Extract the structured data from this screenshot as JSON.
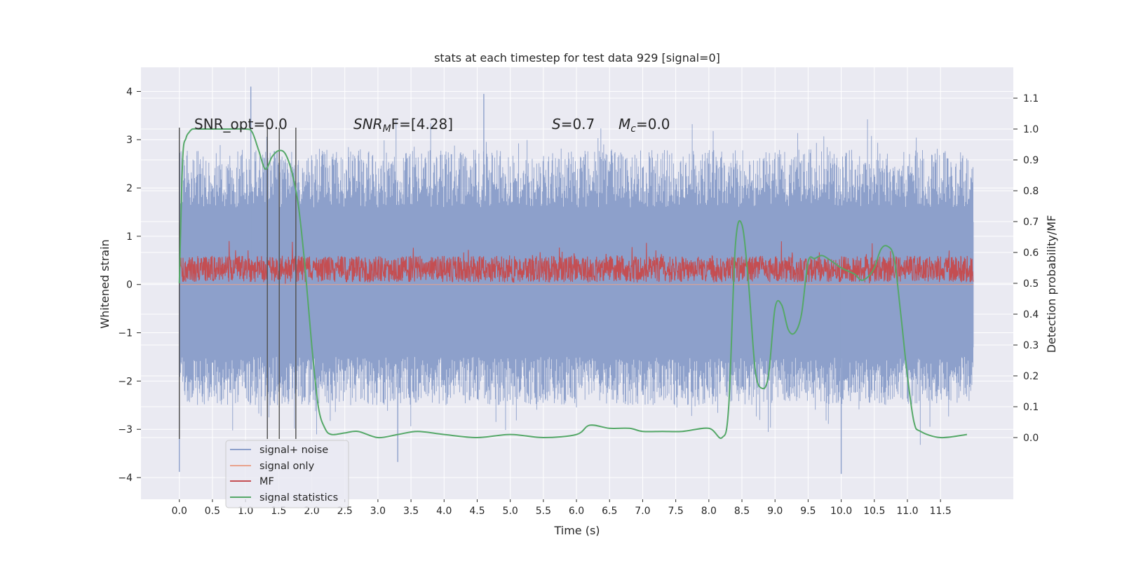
{
  "chart_data": {
    "type": "line",
    "title": "stats at each timestep for test data 929 [signal=0]",
    "xlabel": "Time (s)",
    "ylabel": "Whitened strain",
    "y2label": "Detection probability/MF",
    "xlim": [
      -0.58,
      12.6
    ],
    "ylim": [
      -4.45,
      4.5
    ],
    "y2lim": [
      -0.2,
      1.2
    ],
    "xticks": [
      "0.0",
      "0.5",
      "1.0",
      "1.5",
      "2.0",
      "2.5",
      "3.0",
      "3.5",
      "4.0",
      "4.5",
      "5.0",
      "5.5",
      "6.0",
      "6.5",
      "7.0",
      "7.5",
      "8.0",
      "8.5",
      "9.0",
      "9.5",
      "10.0",
      "10.5",
      "11.0",
      "11.5"
    ],
    "yticks": [
      "4",
      "3",
      "2",
      "1",
      "0",
      "−1",
      "−2",
      "−3",
      "−4"
    ],
    "y2ticks": [
      "1.1",
      "1.0",
      "0.9",
      "0.8",
      "0.7",
      "0.6",
      "0.5",
      "0.4",
      "0.3",
      "0.2",
      "0.1",
      "0.0"
    ],
    "grid": true,
    "legend_location": "lower-left",
    "annotations": {
      "snr_opt": "SNR_opt=0.0",
      "snr_mf_sym": "SNR",
      "snr_mf_sub": "M",
      "snr_mf_rest": "F=[4.28]",
      "s_sym": "S",
      "s_rest": "=0.7",
      "mc_sym": "M",
      "mc_sub": "c",
      "mc_rest": "=0.0"
    },
    "vertical_markers_x": [
      0.0,
      1.33,
      1.51,
      1.76
    ],
    "series": [
      {
        "name": "signal+ noise",
        "color": "#8da0cb",
        "kind": "noise",
        "band_inner": [
          -1.3,
          1.3
        ],
        "typical_envelope": [
          -2.6,
          3.0
        ],
        "duration": 12.0,
        "peak_max": 4.1,
        "peak_min": -4.05
      },
      {
        "name": "signal only",
        "color": "#e9a28c",
        "kind": "flat",
        "value": 0.0
      },
      {
        "name": "MF",
        "color": "#c44e52",
        "kind": "mf",
        "center": 0.32,
        "spread": [
          0.0,
          0.65
        ]
      },
      {
        "name": "signal statistics",
        "color": "#55a868",
        "kind": "curve",
        "axis": "right",
        "x": [
          0.0,
          0.05,
          0.1,
          0.15,
          0.2,
          0.3,
          0.5,
          0.7,
          1.0,
          1.1,
          1.2,
          1.3,
          1.4,
          1.5,
          1.6,
          1.7,
          1.8,
          1.9,
          2.0,
          2.1,
          2.2,
          2.3,
          2.5,
          2.7,
          3.0,
          3.3,
          3.6,
          4.0,
          4.5,
          5.0,
          5.5,
          6.0,
          6.2,
          6.5,
          6.8,
          7.0,
          7.3,
          7.6,
          8.0,
          8.2,
          8.3,
          8.4,
          8.5,
          8.6,
          8.7,
          8.8,
          8.9,
          9.0,
          9.1,
          9.2,
          9.3,
          9.4,
          9.5,
          9.6,
          9.7,
          9.8,
          10.0,
          10.2,
          10.3,
          10.4,
          10.5,
          10.6,
          10.7,
          10.8,
          10.9,
          11.0,
          11.1,
          11.2,
          11.5,
          11.9
        ],
        "values": [
          0.5,
          0.9,
          0.97,
          0.99,
          1.0,
          1.0,
          1.0,
          1.0,
          1.0,
          0.99,
          0.93,
          0.87,
          0.91,
          0.93,
          0.92,
          0.86,
          0.75,
          0.55,
          0.3,
          0.1,
          0.03,
          0.01,
          0.015,
          0.02,
          0.0,
          0.01,
          0.02,
          0.01,
          0.0,
          0.01,
          0.0,
          0.01,
          0.04,
          0.03,
          0.03,
          0.02,
          0.02,
          0.02,
          0.03,
          0.0,
          0.1,
          0.62,
          0.69,
          0.5,
          0.22,
          0.16,
          0.2,
          0.42,
          0.43,
          0.35,
          0.34,
          0.4,
          0.57,
          0.58,
          0.59,
          0.58,
          0.55,
          0.53,
          0.51,
          0.52,
          0.55,
          0.61,
          0.62,
          0.58,
          0.4,
          0.2,
          0.05,
          0.02,
          0.0,
          0.01
        ]
      }
    ]
  }
}
